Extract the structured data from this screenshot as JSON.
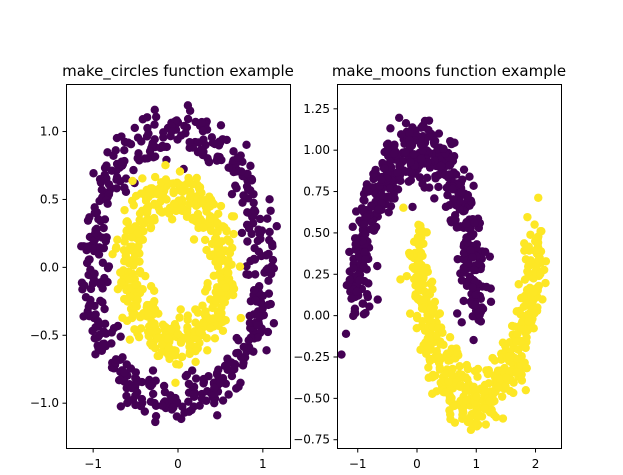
{
  "chart_data": [
    {
      "type": "scatter",
      "title": "make_circles function example",
      "xlabel": "",
      "ylabel": "",
      "xlim": [
        -1.32,
        1.32
      ],
      "ylim": [
        -1.33,
        1.35
      ],
      "xticks": [
        -1,
        0,
        1
      ],
      "yticks": [
        -1.0,
        -0.5,
        0.0,
        0.5,
        1.0
      ],
      "xtick_labels": [
        "−1",
        "0",
        "1"
      ],
      "ytick_labels": [
        "−1.0",
        "−0.5",
        "0.0",
        "0.5",
        "1.0"
      ],
      "grid": false,
      "legend": "none",
      "series": [
        {
          "color": "#440154",
          "shape": "ring",
          "center": [
            0,
            0
          ],
          "radius": 1.0,
          "noise": 0.09,
          "count": 500
        },
        {
          "color": "#fde725",
          "shape": "ring",
          "center": [
            0,
            0
          ],
          "radius": 0.55,
          "noise": 0.09,
          "count": 500
        }
      ]
    },
    {
      "type": "scatter",
      "title": "make_moons function example",
      "xlabel": "",
      "ylabel": "",
      "xlim": [
        -1.35,
        2.43
      ],
      "ylim": [
        -0.8,
        1.4
      ],
      "xticks": [
        -1,
        0,
        1,
        2
      ],
      "yticks": [
        -0.75,
        -0.5,
        -0.25,
        0.0,
        0.25,
        0.5,
        0.75,
        1.0,
        1.25
      ],
      "xtick_labels": [
        "−1",
        "0",
        "1",
        "2"
      ],
      "ytick_labels": [
        "−0.75",
        "−0.50",
        "−0.25",
        "0.00",
        "0.25",
        "0.50",
        "0.75",
        "1.00",
        "1.25"
      ],
      "grid": false,
      "legend": "none",
      "series": [
        {
          "color": "#440154",
          "shape": "upper-moon",
          "noise": 0.1,
          "count": 500
        },
        {
          "color": "#fde725",
          "shape": "lower-moon",
          "noise": 0.1,
          "count": 500
        }
      ]
    }
  ]
}
